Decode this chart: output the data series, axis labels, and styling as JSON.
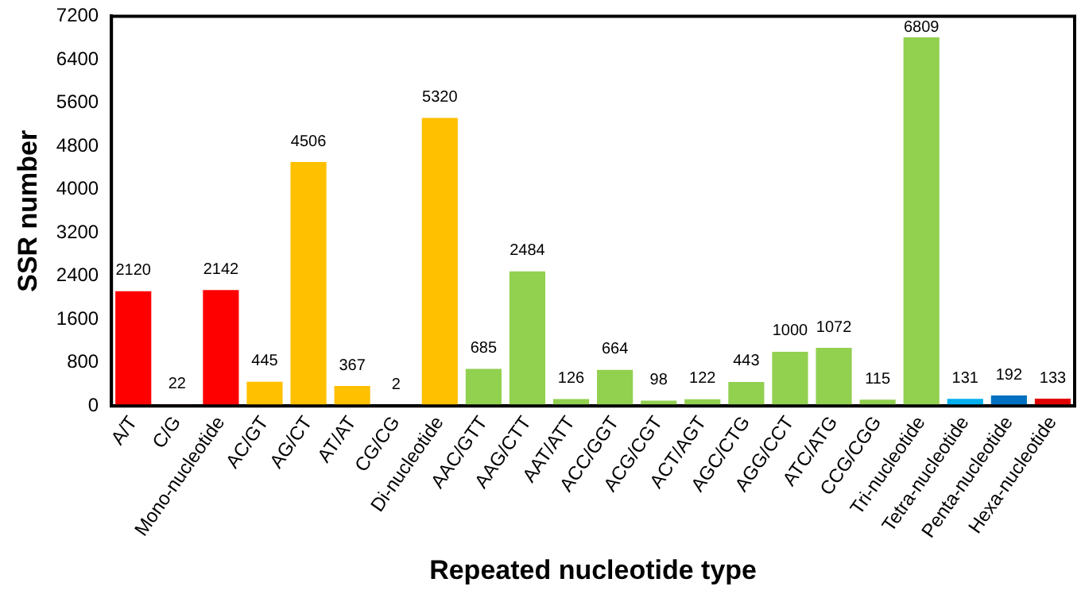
{
  "chart_data": {
    "type": "bar",
    "xlabel": "Repeated nucleotide type",
    "ylabel": "SSR number",
    "categories": [
      "A/T",
      "C/G",
      "Mono-nucleotide",
      "AC/GT",
      "AG/CT",
      "AT/AT",
      "CG/CG",
      "Di-nucleotide",
      "AAC/GTT",
      "AAG/CTT",
      "AAT/ATT",
      "ACC/GGT",
      "ACG/CGT",
      "ACT/AGT",
      "AGC/CTG",
      "AGG/CCT",
      "ATC/ATG",
      "CCG/CGG",
      "Tri-nucleotide",
      "Tetra-nucleotide",
      "Penta-nucleotide",
      "Hexa-nucleotide"
    ],
    "values": [
      2120,
      22,
      2142,
      445,
      4506,
      367,
      2,
      5320,
      685,
      2484,
      126,
      664,
      98,
      122,
      443,
      1000,
      1072,
      115,
      6809,
      131,
      192,
      133
    ],
    "colors": [
      "#ff0000",
      "#ff0000",
      "#ff0000",
      "#ffc000",
      "#ffc000",
      "#ffc000",
      "#ffc000",
      "#ffc000",
      "#92d050",
      "#92d050",
      "#92d050",
      "#92d050",
      "#92d050",
      "#92d050",
      "#92d050",
      "#92d050",
      "#92d050",
      "#92d050",
      "#92d050",
      "#00b0f0",
      "#0070c0",
      "#e00000"
    ],
    "ylim": [
      0,
      7200
    ],
    "yticks": [
      0,
      800,
      1600,
      2400,
      3200,
      4000,
      4800,
      5600,
      6400,
      7200
    ],
    "grid": false,
    "legend": false,
    "data_labels": true
  }
}
